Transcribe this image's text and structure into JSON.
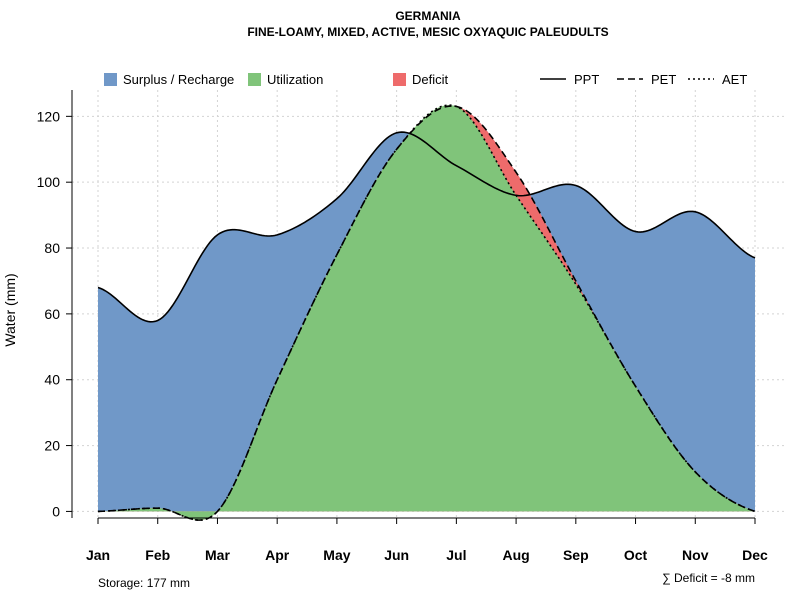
{
  "chart_data": {
    "type": "area",
    "title": "GERMANIA",
    "subtitle": "FINE-LOAMY, MIXED, ACTIVE, MESIC OXYAQUIC PALEUDULTS",
    "ylabel": "Water (mm)",
    "xlabel": "",
    "categories": [
      "Jan",
      "Feb",
      "Mar",
      "Apr",
      "May",
      "Jun",
      "Jul",
      "Aug",
      "Sep",
      "Oct",
      "Nov",
      "Dec"
    ],
    "yticks": [
      0,
      20,
      40,
      60,
      80,
      100,
      120
    ],
    "ylim": [
      -2,
      128
    ],
    "grid": true,
    "legend_position": "top",
    "series": [
      {
        "name": "PPT",
        "linestyle": "solid",
        "values": [
          68,
          58,
          84,
          84,
          95,
          115,
          105,
          96,
          99,
          85,
          91,
          77
        ]
      },
      {
        "name": "PET",
        "linestyle": "dashed",
        "values": [
          0,
          1,
          0,
          40,
          78,
          110,
          123,
          103,
          70,
          38,
          12,
          0
        ]
      },
      {
        "name": "AET",
        "linestyle": "dotted",
        "values": [
          0,
          1,
          0,
          40,
          78,
          110,
          123,
          96,
          69,
          38,
          12,
          0
        ]
      }
    ],
    "fills": [
      {
        "name": "Surplus / Recharge",
        "color": "#7098C8"
      },
      {
        "name": "Utilization",
        "color": "#80C47A"
      },
      {
        "name": "Deficit",
        "color": "#EE6B6B"
      }
    ],
    "footer": {
      "storage": "Storage: 177 mm",
      "deficit": "∑ Deficit = -8 mm"
    }
  }
}
